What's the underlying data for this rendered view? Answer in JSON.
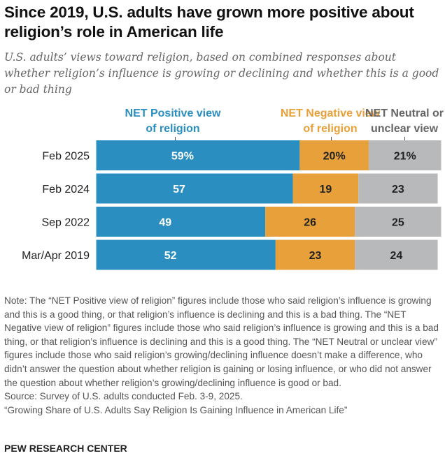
{
  "title": "Since 2019, U.S. adults have grown more positive about religion’s role in American life",
  "subtitle": "U.S. adults’ views toward religion, based on combined responses about whether religion’s influence is growing or declining and whether this is a good or bad thing",
  "chart_data": {
    "type": "bar",
    "orientation": "horizontal-stacked",
    "categories": [
      "Feb 2025",
      "Feb 2024",
      "Sep 2022",
      "Mar/Apr 2019"
    ],
    "series": [
      {
        "name": "NET Positive view of religion",
        "color": "#2a8fc0",
        "label_color": "#ffffff",
        "values": [
          59,
          57,
          49,
          52
        ],
        "labels": [
          "59%",
          "57",
          "49",
          "52"
        ]
      },
      {
        "name": "NET Negative view of religion",
        "color": "#e8a13a",
        "label_color": "#222222",
        "values": [
          20,
          19,
          26,
          23
        ],
        "labels": [
          "20%",
          "19",
          "26",
          "23"
        ]
      },
      {
        "name": "NET Neutral or unclear view",
        "color": "#b8b9bb",
        "label_color": "#222222",
        "values": [
          21,
          23,
          25,
          24
        ],
        "labels": [
          "21%",
          "23",
          "25",
          "24"
        ]
      }
    ],
    "xlim": [
      0,
      100
    ],
    "legend_placement": "top",
    "legend_colors": [
      "#2a8fc0",
      "#e8a13a",
      "#666666"
    ]
  },
  "notes": [
    "Note: The “NET Positive view of religion” figures include those who said religion’s influence is growing and this is a good thing, or that religion’s influence is declining and this is a bad thing. The “NET Negative view of religion” figures include those who said religion’s influence is growing and this is a bad thing, or that religion’s influence is declining and this is a good thing. The “NET Neutral or unclear view” figures include those who said religion’s growing/declining influence doesn’t make a difference, who didn’t answer the question about whether religion is gaining or losing influence, or who did not answer the question about whether religion’s growing/declining influence is good or bad.",
    "Source: Survey of U.S. adults conducted Feb. 3-9, 2025.",
    "“Growing Share of U.S. Adults Say Religion Is Gaining Influence in American Life”"
  ],
  "footer": "PEW RESEARCH CENTER"
}
